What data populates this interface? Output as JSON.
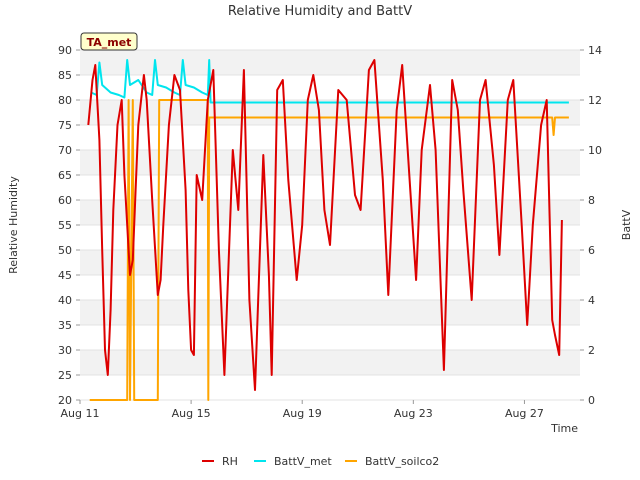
{
  "chart_data": {
    "type": "line",
    "title": "Relative Humidity and BattV",
    "xlabel": "Time",
    "ylabel": "Relative Humidity",
    "y2label": "BattV",
    "annotation": "TA_met",
    "x_ticks": [
      "Aug 11",
      "Aug 15",
      "Aug 19",
      "Aug 23",
      "Aug 27"
    ],
    "x_tick_days": [
      11,
      15,
      19,
      23,
      27
    ],
    "xlim": [
      11,
      29
    ],
    "ylim": [
      20,
      90
    ],
    "y_ticks": [
      20,
      25,
      30,
      35,
      40,
      45,
      50,
      55,
      60,
      65,
      70,
      75,
      80,
      85,
      90
    ],
    "y2lim": [
      0,
      14
    ],
    "y2_ticks": [
      0,
      2,
      4,
      6,
      8,
      10,
      12,
      14
    ],
    "grid": true,
    "legend_position": "bottom",
    "series": [
      {
        "name": "RH",
        "axis": "left",
        "color": "#dd0000",
        "x": [
          11.3,
          11.45,
          11.55,
          11.7,
          11.8,
          11.9,
          12.0,
          12.1,
          12.2,
          12.35,
          12.5,
          12.6,
          12.8,
          12.9,
          13.0,
          13.1,
          13.3,
          13.4,
          13.6,
          13.8,
          13.9,
          14.0,
          14.2,
          14.4,
          14.6,
          14.8,
          14.9,
          15.0,
          15.1,
          15.2,
          15.4,
          15.6,
          15.8,
          16.0,
          16.2,
          16.5,
          16.7,
          16.9,
          17.1,
          17.3,
          17.6,
          17.8,
          17.9,
          18.1,
          18.3,
          18.5,
          18.8,
          19.0,
          19.2,
          19.4,
          19.6,
          19.8,
          20.0,
          20.3,
          20.6,
          20.9,
          21.1,
          21.4,
          21.6,
          21.9,
          22.1,
          22.4,
          22.6,
          22.9,
          23.1,
          23.3,
          23.6,
          23.8,
          24.1,
          24.4,
          24.6,
          24.8,
          25.1,
          25.4,
          25.6,
          25.9,
          26.1,
          26.4,
          26.6,
          26.9,
          27.1,
          27.3,
          27.6,
          27.8,
          28.0,
          28.1,
          28.25,
          28.35
        ],
        "values": [
          75,
          84,
          87,
          72,
          50,
          30,
          25,
          38,
          58,
          75,
          80,
          65,
          45,
          48,
          62,
          75,
          85,
          80,
          60,
          41,
          44,
          55,
          75,
          85,
          82,
          62,
          42,
          30,
          29,
          65,
          60,
          80,
          86,
          50,
          25,
          70,
          58,
          86,
          40,
          22,
          69,
          45,
          25,
          82,
          84,
          64,
          44,
          55,
          80,
          85,
          78,
          58,
          51,
          82,
          80,
          61,
          58,
          86,
          88,
          64,
          41,
          78,
          87,
          61,
          44,
          70,
          83,
          70,
          26,
          84,
          78,
          62,
          40,
          80,
          84,
          67,
          49,
          80,
          84,
          55,
          35,
          55,
          75,
          80,
          36,
          33,
          29,
          56
        ]
      },
      {
        "name": "BattV_met",
        "axis": "right",
        "color": "#00e5ee",
        "x": [
          11.4,
          11.6,
          11.7,
          11.8,
          12.1,
          12.4,
          12.6,
          12.7,
          12.8,
          13.1,
          13.4,
          13.6,
          13.7,
          13.8,
          14.1,
          14.4,
          14.6,
          14.7,
          14.8,
          15.1,
          15.4,
          15.6,
          15.65,
          15.7,
          16.0,
          17.0,
          18.0,
          19.0,
          20.0,
          21.0,
          22.0,
          23.0,
          24.0,
          25.0,
          26.0,
          27.0,
          28.0,
          28.6
        ],
        "values": [
          12.3,
          12.2,
          13.5,
          12.6,
          12.3,
          12.2,
          12.1,
          13.6,
          12.6,
          12.8,
          12.3,
          12.2,
          13.6,
          12.6,
          12.5,
          12.3,
          12.2,
          13.6,
          12.6,
          12.5,
          12.3,
          12.2,
          13.6,
          11.9,
          11.9,
          11.9,
          11.9,
          11.9,
          11.9,
          11.9,
          11.9,
          11.9,
          11.9,
          11.9,
          11.9,
          11.9,
          11.9,
          11.9
        ]
      },
      {
        "name": "BattV_soilco2",
        "axis": "right",
        "color": "#ffa500",
        "x": [
          11.35,
          12.7,
          12.75,
          12.8,
          12.9,
          12.95,
          13.0,
          13.8,
          13.85,
          13.9,
          15.6,
          15.62,
          15.65,
          15.7,
          17.0,
          18.0,
          19.0,
          20.0,
          21.0,
          22.0,
          23.0,
          24.0,
          25.0,
          26.0,
          27.0,
          27.8,
          28.0,
          28.05,
          28.1,
          28.15,
          28.3,
          28.6
        ],
        "values": [
          0,
          0,
          12.0,
          0,
          12.0,
          0,
          0,
          0,
          12.0,
          12.0,
          12.0,
          0,
          11.3,
          11.3,
          11.3,
          11.3,
          11.3,
          11.3,
          11.3,
          11.3,
          11.3,
          11.3,
          11.3,
          11.3,
          11.3,
          11.3,
          11.3,
          10.6,
          11.3,
          11.3,
          11.3,
          11.3
        ]
      }
    ]
  }
}
